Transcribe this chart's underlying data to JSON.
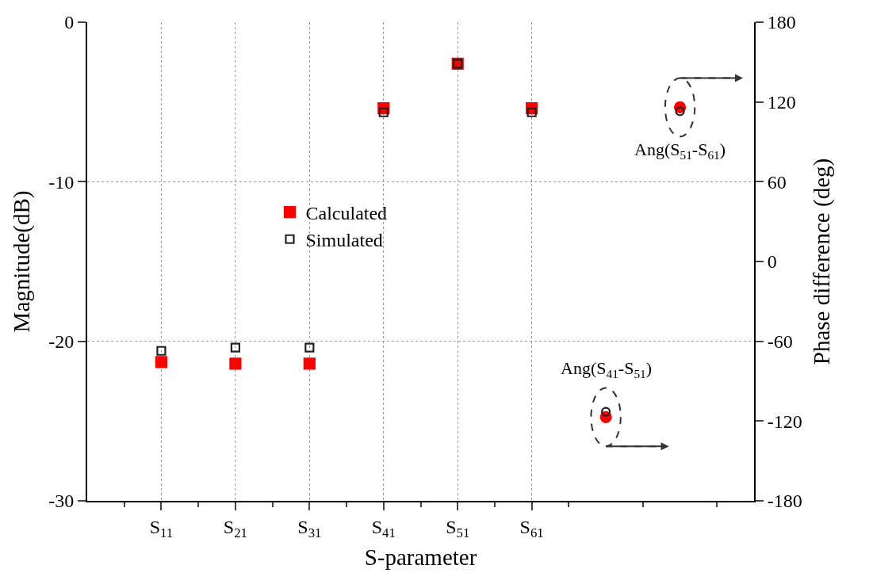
{
  "chart_data": {
    "type": "scatter",
    "xlabel": "S-parameter",
    "ylabel": "Magnitude(dB)",
    "y2label": "Phase difference (deg)",
    "categories": [
      "S$_{11}$",
      "S$_{21}$",
      "S$_{31}$",
      "S$_{41}$",
      "S$_{51}$",
      "S$_{61}$",
      null,
      null
    ],
    "series": [
      {
        "name": "Calculated",
        "color": "#ff0000",
        "marker": "square",
        "values": [
          -21.3,
          -21.4,
          -21.4,
          -5.4,
          -2.6,
          -5.4,
          null,
          null
        ]
      },
      {
        "name": "Simulated",
        "color": "#222222",
        "marker": "square",
        "values": [
          -20.6,
          -20.4,
          -20.4,
          -5.65,
          -2.6,
          -5.65,
          null,
          null
        ]
      },
      {
        "color": "#ff0000",
        "marker": "circle",
        "axis": "y2",
        "values": [
          null,
          null,
          null,
          null,
          null,
          null,
          -117,
          116
        ]
      },
      {
        "color": "#222222",
        "marker": "circle",
        "axis": "y2",
        "values": [
          null,
          null,
          null,
          null,
          null,
          null,
          -113,
          113
        ]
      }
    ],
    "ylim": [
      -30,
      0
    ],
    "yticks": [
      -30,
      -20,
      -10,
      0
    ],
    "y2lim": [
      -180,
      180
    ],
    "y2ticks": [
      -180,
      -120,
      -60,
      0,
      60,
      120,
      180
    ],
    "annotations": [
      "Ang(S$_{41}$-S$_{51}$)",
      "Ang(S$_{51}$-S$_{61}$)"
    ],
    "grid": true,
    "legend": "center"
  }
}
